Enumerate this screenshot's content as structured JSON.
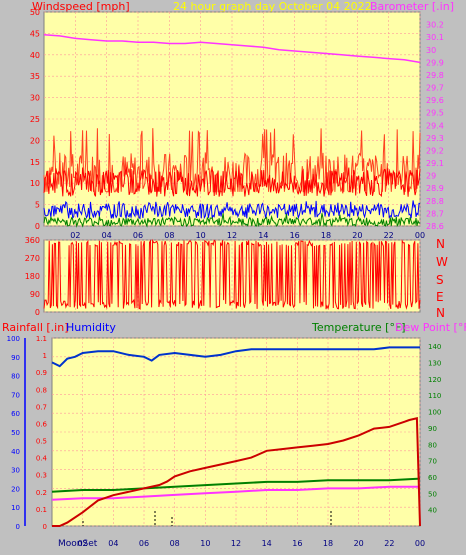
{
  "header": {
    "left_label": "Windspeed [mph]",
    "title": "24 hour graph day   October 04 2022",
    "right_label": "Barometer [.in]"
  },
  "wind_dir_labels": [
    "N",
    "W",
    "S",
    "E",
    "N"
  ],
  "bottom_header": {
    "rain_label": "Rainfall [.in]",
    "humidity_label": "Humidity",
    "temp_label": "Temperature [°F]",
    "dew_label": "Dew Point [°F]"
  },
  "moon_label": "MoonSet",
  "colors": {
    "background": "#c0c0c0",
    "plot_bg": "#ffffa8",
    "grid": "#ff9a9a",
    "windspeed": "#ff0000",
    "gust": "#ff4020",
    "wind_avg": "#0000ff",
    "wind_min": "#008000",
    "barometer": "#ff33ff",
    "rain": "#cc0000",
    "humidity": "#0033cc",
    "temperature": "#008000",
    "dewpoint": "#ff33ff",
    "title": "#ffff00"
  },
  "chart_data": [
    {
      "type": "line",
      "name": "wind-barometer",
      "x_ticks": [
        "02",
        "04",
        "06",
        "08",
        "10",
        "12",
        "14",
        "16",
        "18",
        "20",
        "22",
        "00"
      ],
      "ylim_left": [
        0,
        50
      ],
      "y_ticks_left": [
        "0",
        "5",
        "10",
        "15",
        "20",
        "25",
        "30",
        "35",
        "40",
        "45",
        "50"
      ],
      "ylim_right": [
        28.6,
        30.3
      ],
      "y_ticks_right": [
        "28.6",
        "28.7",
        "28.8",
        "28.9",
        "29",
        "29.1",
        "29.2",
        "29.3",
        "29.4",
        "29.5",
        "29.6",
        "29.7",
        "29.8",
        "29.9",
        "30",
        "30.1",
        "30.2"
      ],
      "grid": true,
      "series": [
        {
          "name": "Barometer",
          "x": [
            0,
            1,
            2,
            3,
            4,
            5,
            6,
            7,
            8,
            9,
            10,
            11,
            12,
            13,
            14,
            15,
            16,
            17,
            18,
            19,
            20,
            21,
            22,
            23,
            24
          ],
          "values": [
            30.12,
            30.11,
            30.09,
            30.08,
            30.07,
            30.07,
            30.06,
            30.06,
            30.05,
            30.05,
            30.06,
            30.05,
            30.04,
            30.03,
            30.02,
            30.0,
            29.99,
            29.98,
            29.97,
            29.96,
            29.95,
            29.94,
            29.93,
            29.92,
            29.9
          ]
        },
        {
          "name": "Wind gust",
          "range": [
            8,
            23
          ],
          "typical": 12
        },
        {
          "name": "Wind speed",
          "range": [
            3,
            10
          ],
          "typical": 6
        },
        {
          "name": "Wind average",
          "range": [
            1,
            6
          ],
          "typical": 3.5
        },
        {
          "name": "Wind minimum",
          "range": [
            0,
            3
          ],
          "typical": 1
        }
      ]
    },
    {
      "type": "line",
      "name": "wind-direction",
      "ylim": [
        0,
        360
      ],
      "y_ticks": [
        "0",
        "90",
        "180",
        "270",
        "360"
      ],
      "note": "Direction alternates rapidly between about 30 and 350 degrees throughout the day."
    },
    {
      "type": "line",
      "name": "rain-humidity-temperature",
      "x_ticks": [
        "02",
        "04",
        "06",
        "08",
        "10",
        "12",
        "14",
        "16",
        "18",
        "20",
        "22",
        "00"
      ],
      "ylim_humidity": [
        0,
        100
      ],
      "y_ticks_humidity": [
        "0",
        "10",
        "20",
        "30",
        "40",
        "50",
        "60",
        "70",
        "80",
        "90",
        "100"
      ],
      "ylim_rain": [
        0,
        1.1
      ],
      "y_ticks_rain": [
        "0",
        "0.1",
        "0.2",
        "0.3",
        "0.4",
        "0.5",
        "0.6",
        "0.7",
        "0.8",
        "0.9",
        "1",
        "1.1"
      ],
      "ylim_temp": [
        30,
        145
      ],
      "y_ticks_temp": [
        "40",
        "50",
        "60",
        "70",
        "80",
        "90",
        "100",
        "110",
        "120",
        "130",
        "140"
      ],
      "grid": true,
      "series": [
        {
          "name": "Humidity",
          "x": [
            0,
            0.5,
            1,
            1.5,
            2,
            3,
            4,
            5,
            6,
            6.5,
            7,
            8,
            9,
            10,
            11,
            12,
            13,
            14,
            15,
            16,
            17,
            18,
            19,
            20,
            21,
            22,
            23,
            24
          ],
          "values": [
            87,
            85,
            89,
            90,
            92,
            93,
            93,
            91,
            90,
            88,
            91,
            92,
            91,
            90,
            91,
            93,
            94,
            94,
            94,
            94,
            94,
            94,
            94,
            94,
            94,
            95,
            95,
            95
          ]
        },
        {
          "name": "Rainfall",
          "x": [
            0,
            0.5,
            1,
            2,
            3,
            4,
            5,
            6,
            7,
            7.5,
            8,
            9,
            10,
            11,
            12,
            13,
            14,
            15,
            16,
            17,
            18,
            19,
            20,
            21,
            22,
            23,
            23.3,
            23.8,
            24
          ],
          "values": [
            0,
            0,
            0.02,
            0.08,
            0.15,
            0.18,
            0.2,
            0.22,
            0.24,
            0.26,
            0.29,
            0.32,
            0.34,
            0.36,
            0.38,
            0.4,
            0.44,
            0.45,
            0.46,
            0.47,
            0.48,
            0.5,
            0.53,
            0.57,
            0.58,
            0.61,
            0.62,
            0.63,
            0
          ]
        },
        {
          "name": "Temperature",
          "x": [
            0,
            2,
            4,
            6,
            8,
            10,
            12,
            14,
            16,
            18,
            20,
            22,
            24
          ],
          "values": [
            51,
            52,
            52,
            53,
            54,
            55,
            56,
            57,
            57,
            58,
            58,
            58,
            59
          ]
        },
        {
          "name": "Dew Point",
          "x": [
            0,
            2,
            4,
            6,
            8,
            10,
            12,
            14,
            16,
            18,
            20,
            22,
            24
          ],
          "values": [
            46,
            47,
            47,
            48,
            49,
            50,
            51,
            52,
            52,
            53,
            53,
            54,
            54
          ]
        }
      ]
    }
  ]
}
